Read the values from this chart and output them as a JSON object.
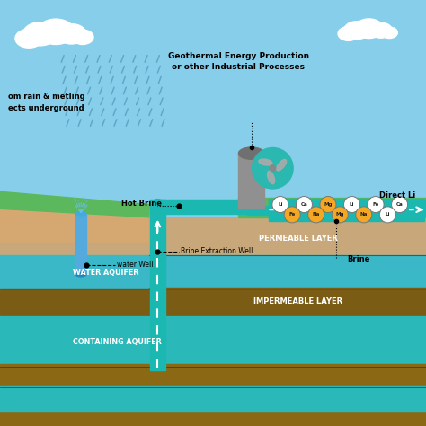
{
  "sky_color": "#87CEEB",
  "grass_color": "#5cb85c",
  "grass_light": "#7acc7a",
  "soil_tan_color": "#c8a87a",
  "soil_dark_color": "#8B6914",
  "impermeable_color": "#7a5c14",
  "aquifer_color": "#3ab8c8",
  "li_aquifer_color": "#2ab8b8",
  "pipe_color": "#1ab8b0",
  "pipe_outline": "#158888",
  "water_blue": "#55aadd",
  "rain_color": "#5599bb",
  "tower_color": "#909090",
  "tower_dark": "#707070",
  "title_text": "Geothermal Energy Production\nor other Industrial Processes",
  "label_rain": "om rain & metling\nects underground",
  "label_hot_brine": "Hot Brine",
  "label_direct_li": "Direct Li",
  "label_water_well": "water Well",
  "label_brine_well": "Brine Extraction Well",
  "label_brine": "Brine",
  "label_permeable": "PERMEABLE LAYER",
  "label_impermeable": "IMPERMEABLE LAYER",
  "label_water_aquifer": "WATER AQUIFER",
  "label_containing": "CONTAINING AQUIFER",
  "elements_top": [
    "Li",
    "Ca",
    "Mg",
    "Li",
    "Fe",
    "Ca"
  ],
  "elements_bottom": [
    "Fe",
    "Na",
    "Mg",
    "Na",
    "Li"
  ],
  "elem_colors_top": [
    "white",
    "white",
    "#f5a623",
    "white",
    "white",
    "white"
  ],
  "elem_colors_bottom": [
    "#f5a623",
    "#f5a623",
    "#f5a623",
    "#f5a623",
    "white"
  ],
  "figsize": [
    4.74,
    4.74
  ],
  "dpi": 100
}
